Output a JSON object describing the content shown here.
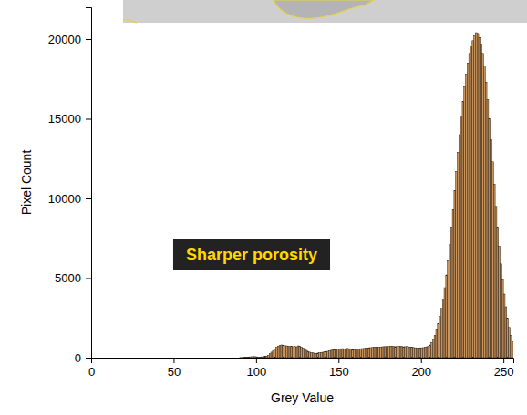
{
  "chart_data": {
    "type": "histogram",
    "annotation": "Sharper porosity",
    "x_label": "Grey Value",
    "y_label": "Pixel Count",
    "color": "#c9955f",
    "xlim": [
      0,
      256
    ],
    "ylim": [
      0,
      22000
    ],
    "xticks": [
      0,
      50,
      100,
      150,
      200,
      250
    ],
    "yticks": [
      0,
      5000,
      10000,
      15000,
      20000
    ],
    "bins": [
      0,
      1,
      2,
      3,
      4,
      5,
      6,
      7,
      8,
      9,
      10,
      11,
      12,
      13,
      14,
      15,
      16,
      17,
      18,
      19,
      20,
      21,
      22,
      23,
      24,
      25,
      26,
      27,
      28,
      29,
      30,
      31,
      32,
      33,
      34,
      35,
      36,
      37,
      38,
      39,
      40,
      41,
      42,
      43,
      44,
      45,
      46,
      47,
      48,
      49,
      50,
      51,
      52,
      53,
      54,
      55,
      56,
      57,
      58,
      59,
      60,
      61,
      62,
      63,
      64,
      65,
      66,
      67,
      68,
      69,
      70,
      71,
      72,
      73,
      74,
      75,
      76,
      77,
      78,
      79,
      80,
      81,
      82,
      83,
      84,
      85,
      86,
      87,
      88,
      89,
      90,
      91,
      92,
      93,
      94,
      95,
      96,
      97,
      98,
      99,
      100,
      101,
      102,
      103,
      104,
      105,
      106,
      107,
      108,
      109,
      110,
      111,
      112,
      113,
      114,
      115,
      116,
      117,
      118,
      119,
      120,
      121,
      122,
      123,
      124,
      125,
      126,
      127,
      128,
      129,
      130,
      131,
      132,
      133,
      134,
      135,
      136,
      137,
      138,
      139,
      140,
      141,
      142,
      143,
      144,
      145,
      146,
      147,
      148,
      149,
      150,
      151,
      152,
      153,
      154,
      155,
      156,
      157,
      158,
      159,
      160,
      161,
      162,
      163,
      164,
      165,
      166,
      167,
      168,
      169,
      170,
      171,
      172,
      173,
      174,
      175,
      176,
      177,
      178,
      179,
      180,
      181,
      182,
      183,
      184,
      185,
      186,
      187,
      188,
      189,
      190,
      191,
      192,
      193,
      194,
      195,
      196,
      197,
      198,
      199,
      200,
      201,
      202,
      203,
      204,
      205,
      206,
      207,
      208,
      209,
      210,
      211,
      212,
      213,
      214,
      215,
      216,
      217,
      218,
      219,
      220,
      221,
      222,
      223,
      224,
      225,
      226,
      227,
      228,
      229,
      230,
      231,
      232,
      233,
      234,
      235,
      236,
      237,
      238,
      239,
      240,
      241,
      242,
      243,
      244,
      245,
      246,
      247,
      248,
      249,
      250,
      251,
      252,
      253,
      254,
      255,
      256
    ],
    "counts": [
      0,
      0,
      0,
      0,
      0,
      0,
      0,
      0,
      0,
      0,
      0,
      0,
      0,
      0,
      0,
      0,
      0,
      0,
      0,
      0,
      0,
      0,
      0,
      0,
      0,
      0,
      0,
      0,
      0,
      0,
      0,
      0,
      0,
      0,
      0,
      0,
      0,
      0,
      0,
      0,
      0,
      0,
      0,
      0,
      0,
      0,
      0,
      0,
      0,
      0,
      0,
      0,
      0,
      0,
      0,
      0,
      0,
      0,
      0,
      0,
      0,
      0,
      0,
      0,
      0,
      0,
      0,
      0,
      0,
      0,
      0,
      0,
      0,
      0,
      0,
      0,
      0,
      0,
      0,
      0,
      0,
      0,
      0,
      0,
      0,
      0,
      0,
      0,
      0,
      0,
      10,
      10,
      20,
      20,
      30,
      40,
      50,
      60,
      70,
      60,
      50,
      40,
      40,
      50,
      60,
      80,
      100,
      150,
      250,
      350,
      450,
      550,
      650,
      720,
      760,
      800,
      780,
      750,
      740,
      720,
      700,
      720,
      690,
      700,
      680,
      740,
      720,
      660,
      600,
      540,
      460,
      400,
      350,
      320,
      300,
      280,
      270,
      290,
      310,
      330,
      340,
      360,
      380,
      400,
      430,
      460,
      480,
      500,
      520,
      530,
      540,
      560,
      570,
      550,
      560,
      580,
      560,
      540,
      520,
      500,
      510,
      530,
      550,
      560,
      570,
      580,
      600,
      610,
      620,
      630,
      640,
      650,
      660,
      660,
      650,
      670,
      680,
      690,
      700,
      690,
      700,
      710,
      720,
      700,
      690,
      700,
      710,
      720,
      700,
      680,
      690,
      700,
      680,
      660,
      650,
      640,
      620,
      600,
      600,
      610,
      620,
      630,
      650,
      680,
      720,
      800,
      950,
      1150,
      1400,
      1750,
      2150,
      2600,
      3100,
      3700,
      4400,
      5200,
      6100,
      7100,
      8200,
      9300,
      10500,
      11700,
      12900,
      14000,
      15100,
      16100,
      17000,
      17800,
      18500,
      19100,
      19500,
      19900,
      20200,
      20400,
      20350,
      20100,
      19700,
      19100,
      18300,
      17300,
      16200,
      15000,
      13700,
      12300,
      10900,
      9500,
      8200,
      7000,
      5900,
      4900,
      4000,
      3200,
      2500,
      1900,
      1400,
      1000
    ]
  }
}
